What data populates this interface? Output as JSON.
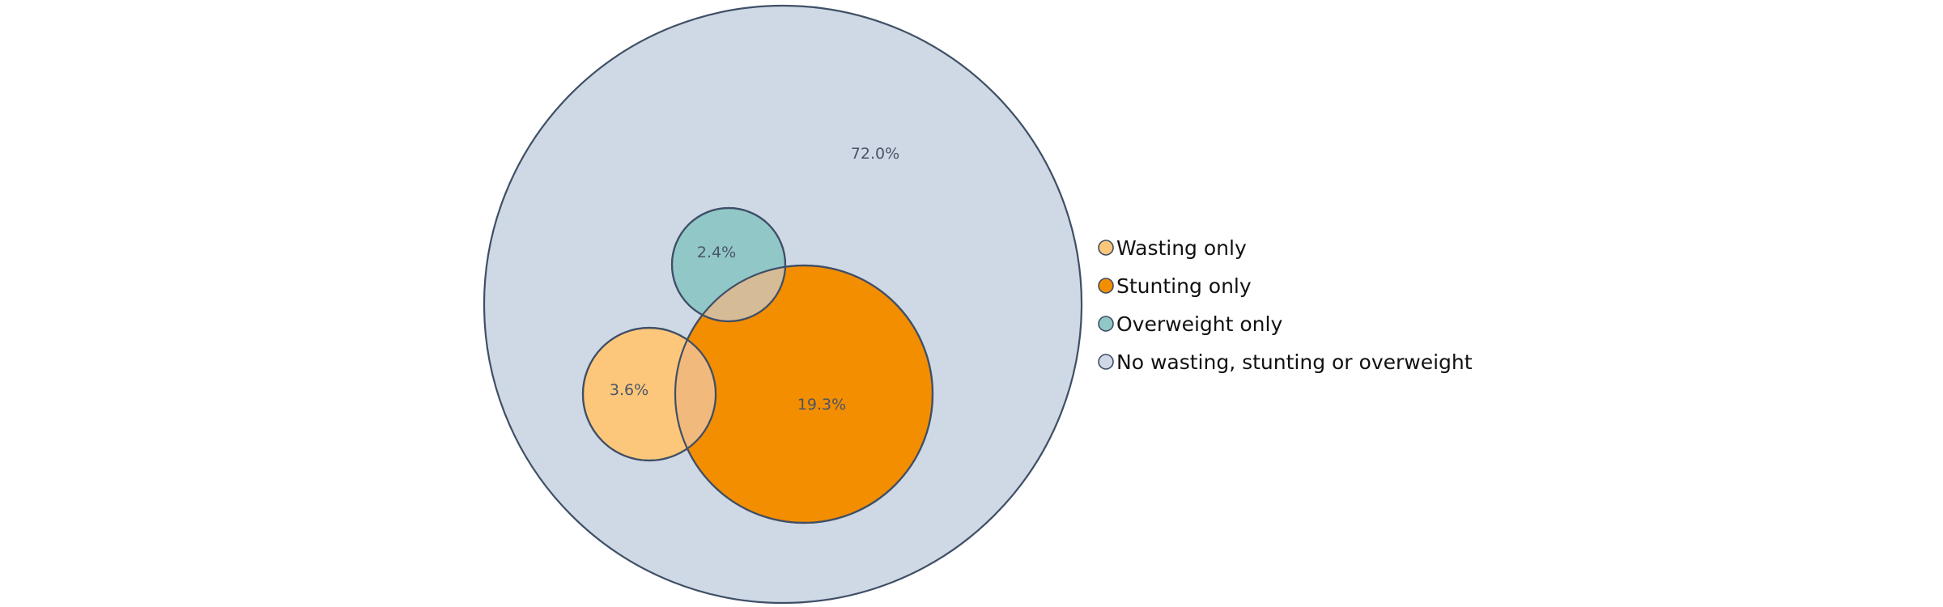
{
  "chart_data": {
    "type": "venn",
    "title": "",
    "sets": [
      {
        "name": "No wasting, stunting or overweight",
        "value": 72.0,
        "label": "72.0%",
        "color": "#cfd8e5"
      },
      {
        "name": "Stunting only",
        "value": 19.3,
        "label": "19.3%",
        "color": "#f28e00"
      },
      {
        "name": "Wasting only",
        "value": 3.6,
        "label": "3.6%",
        "color": "#fcc77a"
      },
      {
        "name": "Overweight only",
        "value": 2.4,
        "label": "2.4%",
        "color": "#92c7c8"
      }
    ],
    "overlaps": [
      {
        "sets": [
          "Wasting only",
          "Stunting only"
        ],
        "color": "#f2b97c"
      },
      {
        "sets": [
          "Overweight only",
          "Stunting only"
        ],
        "color": "#d6bb97"
      }
    ],
    "legend": {
      "position": "right",
      "items": [
        {
          "label": "Wasting only",
          "color": "#fcc77a"
        },
        {
          "label": "Stunting only",
          "color": "#f28e00"
        },
        {
          "label": "Overweight only",
          "color": "#92c7c8"
        },
        {
          "label": "No wasting, stunting or overweight",
          "color": "#cfd8e5"
        }
      ]
    }
  }
}
